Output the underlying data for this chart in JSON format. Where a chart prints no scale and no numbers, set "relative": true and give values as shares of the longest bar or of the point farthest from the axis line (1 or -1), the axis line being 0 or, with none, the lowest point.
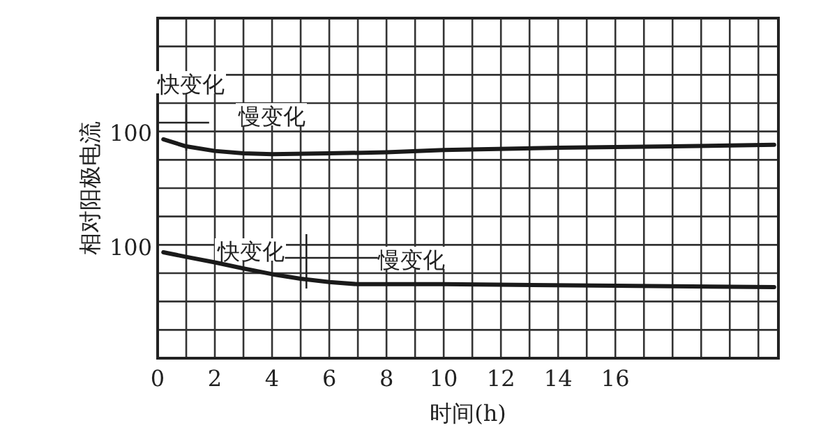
{
  "chart_data": {
    "type": "line",
    "relative": true,
    "xlabel": "时间(h)",
    "ylabel": "相对阳极电流",
    "xlim": [
      0,
      21.7
    ],
    "xticks": [
      0,
      {
        "value": 1,
        "label": null
      },
      2,
      {
        "value": 3,
        "label": null
      },
      4,
      {
        "value": 5,
        "label": null
      },
      6,
      {
        "value": 7,
        "label": null
      },
      8,
      {
        "value": 9,
        "label": null
      },
      10,
      {
        "value": 11,
        "label": null
      },
      12,
      {
        "value": 13,
        "label": null
      },
      14,
      {
        "value": 15,
        "label": null
      },
      16,
      {
        "value": 17,
        "label": null
      },
      {
        "value": 18,
        "label": null
      },
      {
        "value": 19,
        "label": null
      },
      {
        "value": 20,
        "label": null
      },
      {
        "value": 21,
        "label": null
      }
    ],
    "grid": true,
    "marker": "none",
    "line_style": "solid",
    "series": [
      {
        "color": "#1a1a1a",
        "x": [
          0.2,
          1,
          2,
          3,
          4,
          6,
          8,
          10,
          14,
          18,
          21.55
        ],
        "values": [
          1.0,
          0.968,
          0.947,
          0.936,
          0.932,
          0.936,
          0.941,
          0.951,
          0.962,
          0.968,
          0.975
        ]
      },
      {
        "color": "#1a1a1a",
        "x": [
          0.2,
          1,
          2,
          3,
          4,
          5,
          6,
          7,
          10,
          16,
          21.55
        ],
        "values": [
          0.484,
          0.463,
          0.438,
          0.41,
          0.384,
          0.363,
          0.348,
          0.338,
          0.338,
          0.331,
          0.325
        ]
      }
    ],
    "annotations": [
      "100",
      "100",
      "快变化",
      "慢变化",
      "快变化",
      "慢变化"
    ]
  }
}
